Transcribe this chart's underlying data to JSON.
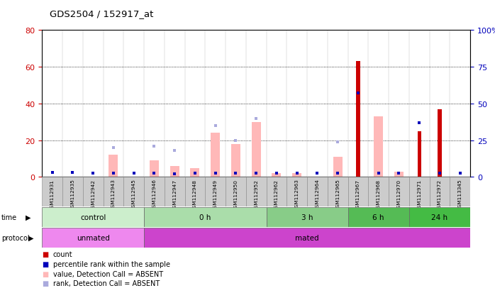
{
  "title": "GDS2504 / 152917_at",
  "samples": [
    "GSM112931",
    "GSM112935",
    "GSM112942",
    "GSM112943",
    "GSM112945",
    "GSM112946",
    "GSM112947",
    "GSM112948",
    "GSM112949",
    "GSM112950",
    "GSM112952",
    "GSM112962",
    "GSM112963",
    "GSM112964",
    "GSM112965",
    "GSM112967",
    "GSM112968",
    "GSM112970",
    "GSM112971",
    "GSM112972",
    "GSM113345"
  ],
  "count_red": [
    0,
    0,
    0,
    0,
    0,
    0,
    0,
    0,
    0,
    0,
    0,
    0,
    0,
    0,
    0,
    63,
    0,
    0,
    25,
    37,
    0
  ],
  "rank_blue_pct": [
    3,
    3,
    2.5,
    2.5,
    2.5,
    2.5,
    2,
    2.5,
    2.5,
    2.5,
    2.5,
    2.5,
    2.5,
    2.5,
    2.5,
    57,
    2.5,
    2.5,
    37,
    2.5,
    2.5
  ],
  "value_pink": [
    0,
    0,
    0,
    12,
    0,
    9,
    6,
    5,
    24,
    18,
    30,
    2,
    2,
    0,
    11,
    0,
    33,
    3,
    0,
    0,
    0
  ],
  "rank_lightblue_pct": [
    0,
    0,
    0,
    20,
    0,
    21,
    18,
    2.5,
    35,
    25,
    40,
    2.5,
    2.5,
    0,
    24,
    0,
    0,
    0,
    0,
    0,
    0
  ],
  "time_groups": [
    {
      "label": "control",
      "start": 0,
      "end": 5,
      "color": "#cceecc"
    },
    {
      "label": "0 h",
      "start": 5,
      "end": 11,
      "color": "#aaddaa"
    },
    {
      "label": "3 h",
      "start": 11,
      "end": 15,
      "color": "#88cc88"
    },
    {
      "label": "6 h",
      "start": 15,
      "end": 18,
      "color": "#55bb55"
    },
    {
      "label": "24 h",
      "start": 18,
      "end": 21,
      "color": "#44bb44"
    }
  ],
  "protocol_groups": [
    {
      "label": "unmated",
      "start": 0,
      "end": 5,
      "color": "#ee88ee"
    },
    {
      "label": "mated",
      "start": 5,
      "end": 21,
      "color": "#cc44cc"
    }
  ],
  "left_ylim": [
    0,
    80
  ],
  "right_ylim": [
    0,
    100
  ],
  "left_yticks": [
    0,
    20,
    40,
    60,
    80
  ],
  "right_yticks": [
    0,
    25,
    50,
    75,
    100
  ],
  "left_tick_labels": [
    "0",
    "20",
    "40",
    "60",
    "80"
  ],
  "right_tick_labels": [
    "0",
    "25",
    "50",
    "75",
    "100%"
  ],
  "left_color": "#cc0000",
  "right_color": "#0000bb",
  "bg_color": "#ffffff",
  "pink_color": "#ffb8b8",
  "lightblue_color": "#aaaadd",
  "red_color": "#cc0000",
  "blue_color": "#0000bb"
}
